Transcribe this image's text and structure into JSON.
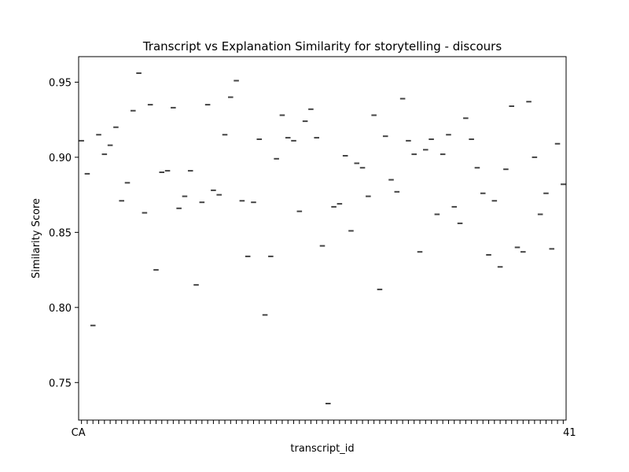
{
  "chart_data": {
    "type": "box",
    "title": "Transcript vs Explanation Similarity for storytelling - discours",
    "xlabel": "transcript_id",
    "ylabel": "Similarity Score",
    "ylim": [
      0.725,
      0.967
    ],
    "yticks": [
      0.75,
      0.8,
      0.85,
      0.9,
      0.95
    ],
    "ytick_labels": [
      "0.75",
      "0.80",
      "0.85",
      "0.90",
      "0.95"
    ],
    "xtick_labels_visible": [
      "CA",
      "41"
    ],
    "grid": false,
    "legend": "none",
    "colors": {
      "median": "#444444",
      "axis": "#000000"
    },
    "values": [
      0.911,
      0.889,
      0.788,
      0.915,
      0.902,
      0.908,
      0.92,
      0.871,
      0.883,
      0.931,
      0.956,
      0.863,
      0.935,
      0.825,
      0.89,
      0.891,
      0.933,
      0.866,
      0.874,
      0.891,
      0.815,
      0.87,
      0.935,
      0.878,
      0.875,
      0.915,
      0.94,
      0.951,
      0.871,
      0.834,
      0.87,
      0.912,
      0.795,
      0.834,
      0.899,
      0.928,
      0.913,
      0.911,
      0.864,
      0.924,
      0.932,
      0.913,
      0.841,
      0.736,
      0.867,
      0.869,
      0.901,
      0.851,
      0.896,
      0.893,
      0.874,
      0.928,
      0.812,
      0.914,
      0.885,
      0.877,
      0.939,
      0.911,
      0.902,
      0.837,
      0.905,
      0.912,
      0.862,
      0.902,
      0.915,
      0.867,
      0.856,
      0.926,
      0.912,
      0.893,
      0.876,
      0.835,
      0.871,
      0.827,
      0.892,
      0.934,
      0.84,
      0.837,
      0.937,
      0.9,
      0.862,
      0.876,
      0.839,
      0.909,
      0.882
    ]
  }
}
